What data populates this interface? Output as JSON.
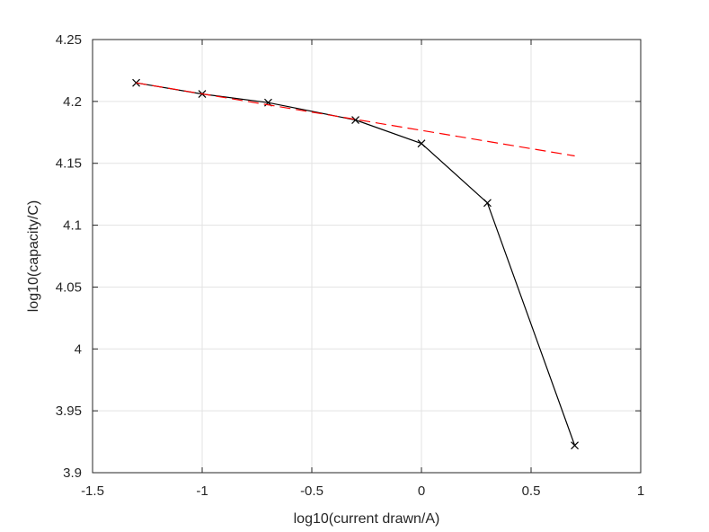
{
  "chart_data": {
    "type": "line",
    "xlabel": "log10(current drawn/A)",
    "ylabel": "log10(capacity/C)",
    "xlim": [
      -1.5,
      1
    ],
    "ylim": [
      3.9,
      4.25
    ],
    "xticks": [
      -1.5,
      -1,
      -0.5,
      0,
      0.5,
      1
    ],
    "xtick_labels": [
      "-1.5",
      "-1",
      "-0.5",
      "0",
      "0.5",
      "1"
    ],
    "yticks": [
      3.9,
      3.95,
      4.0,
      4.05,
      4.1,
      4.15,
      4.2,
      4.25
    ],
    "ytick_labels": [
      "3.9",
      "3.95",
      "4",
      "4.05",
      "4.1",
      "4.15",
      "4.2",
      "4.25"
    ],
    "grid": true,
    "series": [
      {
        "style": "solid-with-x-markers",
        "color": "#000000",
        "x": [
          -1.301,
          -1.0,
          -0.699,
          -0.301,
          0.0,
          0.301,
          0.699
        ],
        "y": [
          4.215,
          4.206,
          4.199,
          4.185,
          4.166,
          4.118,
          3.922
        ]
      },
      {
        "style": "dashed",
        "color": "#ff0000",
        "x": [
          -1.301,
          0.699
        ],
        "y": [
          4.215,
          4.156
        ]
      }
    ]
  }
}
